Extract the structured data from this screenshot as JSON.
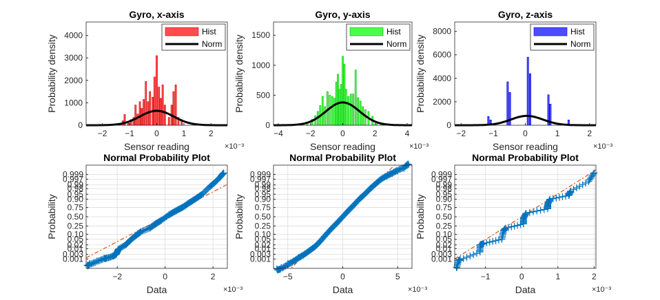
{
  "colors": {
    "red": "#ff4d4d",
    "redEdge": "#cc0000",
    "green": "#4dff4d",
    "greenEdge": "#00b300",
    "blue": "#4d4dff",
    "blueEdge": "#0000cc",
    "probe": "#0072bd",
    "fit": "#d95319"
  },
  "chart_data": [
    {
      "type": "histogram",
      "panel": "hx",
      "title": "Gyro, x-axis",
      "xlabel": "Sensor reading",
      "ylabel": "Probability density",
      "exponent": "×10⁻³",
      "xlim": [
        -2.6,
        2.6
      ],
      "ylim": [
        0,
        4600
      ],
      "xticks": [
        -2,
        -1,
        0,
        1,
        2
      ],
      "yticks": [
        0,
        1000,
        2000,
        3000,
        4000
      ],
      "legend": [
        "Hist",
        "Norm"
      ],
      "legend_position": "top-right",
      "color": "red",
      "normal": {
        "mean": 0.0,
        "sd": 0.62
      },
      "bars": [
        [
          -1.25,
          200
        ],
        [
          -1.18,
          480
        ],
        [
          -1.05,
          150
        ],
        [
          -0.95,
          250
        ],
        [
          -0.85,
          350
        ],
        [
          -0.78,
          900
        ],
        [
          -0.7,
          500
        ],
        [
          -0.62,
          1050
        ],
        [
          -0.55,
          750
        ],
        [
          -0.48,
          1150
        ],
        [
          -0.4,
          1950
        ],
        [
          -0.32,
          1050
        ],
        [
          -0.25,
          1500
        ],
        [
          -0.15,
          1250
        ],
        [
          -0.08,
          2150
        ],
        [
          0.0,
          3100
        ],
        [
          0.08,
          1700
        ],
        [
          0.15,
          1200
        ],
        [
          0.22,
          1800
        ],
        [
          0.3,
          900
        ],
        [
          0.45,
          350
        ],
        [
          0.55,
          900
        ],
        [
          0.62,
          1500
        ],
        [
          0.7,
          1800
        ],
        [
          0.8,
          350
        ],
        [
          0.92,
          200
        ]
      ]
    },
    {
      "type": "histogram",
      "panel": "hy",
      "title": "Gyro, y-axis",
      "xlabel": "Sensor reading",
      "ylabel": "Probability density",
      "exponent": "×10⁻³",
      "xlim": [
        -4.3,
        4.3
      ],
      "ylim": [
        0,
        1720
      ],
      "xticks": [
        -4,
        -2,
        0,
        2,
        4
      ],
      "yticks": [
        0,
        500,
        1000,
        1500
      ],
      "legend": [
        "Hist",
        "Norm"
      ],
      "legend_position": "top-right",
      "color": "green",
      "normal": {
        "mean": 0.0,
        "sd": 1.05
      },
      "bars": [
        [
          -2.6,
          25
        ],
        [
          -2.2,
          50
        ],
        [
          -1.9,
          100
        ],
        [
          -1.7,
          160
        ],
        [
          -1.55,
          230
        ],
        [
          -1.4,
          330
        ],
        [
          -1.25,
          480
        ],
        [
          -1.1,
          310
        ],
        [
          -0.95,
          560
        ],
        [
          -0.8,
          500
        ],
        [
          -0.65,
          480
        ],
        [
          -0.5,
          450
        ],
        [
          -0.4,
          720
        ],
        [
          -0.3,
          850
        ],
        [
          -0.2,
          600
        ],
        [
          -0.1,
          680
        ],
        [
          0.0,
          1150
        ],
        [
          0.1,
          1020
        ],
        [
          0.2,
          600
        ],
        [
          0.35,
          480
        ],
        [
          0.5,
          520
        ],
        [
          0.65,
          520
        ],
        [
          0.8,
          920
        ],
        [
          0.95,
          460
        ],
        [
          1.1,
          400
        ],
        [
          1.25,
          310
        ],
        [
          1.4,
          260
        ],
        [
          1.6,
          230
        ],
        [
          1.85,
          150
        ],
        [
          2.1,
          50
        ],
        [
          2.4,
          30
        ]
      ]
    },
    {
      "type": "histogram",
      "panel": "hz",
      "title": "Gyro, z-axis",
      "xlabel": "Sensor reading",
      "ylabel": "Probability density",
      "exponent": "×10⁻³",
      "xlim": [
        -2.2,
        2.2
      ],
      "ylim": [
        0,
        8800
      ],
      "xticks": [
        -2,
        -1,
        0,
        1,
        2
      ],
      "yticks": [
        0,
        2000,
        4000,
        6000,
        8000
      ],
      "legend": [
        "Hist",
        "Norm"
      ],
      "legend_position": "top-right",
      "color": "blue",
      "normal": {
        "mean": 0.05,
        "sd": 0.5
      },
      "bars": [
        [
          -1.15,
          750
        ],
        [
          -1.08,
          450
        ],
        [
          -0.55,
          3700
        ],
        [
          -0.48,
          2800
        ],
        [
          0.08,
          5800
        ],
        [
          0.15,
          4400
        ],
        [
          0.72,
          2600
        ],
        [
          0.78,
          1800
        ],
        [
          1.35,
          450
        ]
      ]
    },
    {
      "type": "probability_plot",
      "panel": "px",
      "title": "Normal Probability Plot",
      "xlabel": "Data",
      "ylabel": "Probability",
      "exponent": "×10⁻³",
      "xlim": [
        -3.3,
        2.6
      ],
      "xticks": [
        -2,
        0,
        2
      ],
      "ptick_labels": [
        "0.001",
        "0.003",
        "0.01",
        "0.02",
        "0.05",
        "0.10",
        "0.25",
        "0.50",
        "0.75",
        "0.90",
        "0.95",
        "0.98",
        "0.99",
        "0.997",
        "0.999"
      ],
      "pticks": [
        0.001,
        0.003,
        0.01,
        0.02,
        0.05,
        0.1,
        0.25,
        0.5,
        0.75,
        0.9,
        0.95,
        0.98,
        0.99,
        0.997,
        0.999
      ],
      "fit": {
        "mean": 0.0,
        "sd": 1.1
      },
      "points": [
        [
          -3.25,
          0.0002
        ],
        [
          -3.15,
          0.0003
        ],
        [
          -2.85,
          0.0006
        ],
        [
          -2.55,
          0.0012
        ],
        [
          -2.45,
          0.0013
        ],
        [
          -2.2,
          0.002
        ],
        [
          -2.05,
          0.003
        ],
        [
          -2.0,
          0.005
        ],
        [
          -1.95,
          0.009
        ],
        [
          -1.65,
          0.02
        ],
        [
          -1.55,
          0.03
        ],
        [
          -1.35,
          0.06
        ],
        [
          -1.15,
          0.1
        ],
        [
          -1.0,
          0.14
        ],
        [
          -0.65,
          0.2
        ],
        [
          -0.45,
          0.28
        ],
        [
          -0.35,
          0.32
        ],
        [
          -0.15,
          0.4
        ],
        [
          0.15,
          0.55
        ],
        [
          0.35,
          0.63
        ],
        [
          0.55,
          0.7
        ],
        [
          0.75,
          0.76
        ],
        [
          0.95,
          0.83
        ],
        [
          1.15,
          0.88
        ],
        [
          1.35,
          0.92
        ],
        [
          1.55,
          0.95
        ],
        [
          1.85,
          0.985
        ],
        [
          2.05,
          0.993
        ],
        [
          2.3,
          0.998
        ],
        [
          2.45,
          0.9993
        ]
      ]
    },
    {
      "type": "probability_plot",
      "panel": "py",
      "title": "Normal Probability Plot",
      "xlabel": "Data",
      "ylabel": "Probability",
      "exponent": "×10⁻³",
      "xlim": [
        -6.3,
        6.3
      ],
      "xticks": [
        -5,
        0,
        5
      ],
      "ptick_labels": [
        "0.001",
        "0.003",
        "0.01",
        "0.02",
        "0.05",
        "0.10",
        "0.25",
        "0.50",
        "0.75",
        "0.90",
        "0.95",
        "0.98",
        "0.99",
        "0.997",
        "0.999"
      ],
      "pticks": [
        0.001,
        0.003,
        0.01,
        0.02,
        0.05,
        0.1,
        0.25,
        0.5,
        0.75,
        0.9,
        0.95,
        0.98,
        0.99,
        0.997,
        0.999
      ],
      "fit": {
        "mean": 0.0,
        "sd": 1.25
      },
      "points": [
        [
          -6.0,
          7e-05
        ],
        [
          -5.6,
          0.0001
        ],
        [
          -5.0,
          0.0003
        ],
        [
          -4.5,
          0.0006
        ],
        [
          -4.0,
          0.0015
        ],
        [
          -3.5,
          0.003
        ],
        [
          -3.0,
          0.007
        ],
        [
          -2.5,
          0.015
        ],
        [
          -2.0,
          0.04
        ],
        [
          -1.5,
          0.1
        ],
        [
          -1.0,
          0.2
        ],
        [
          -0.5,
          0.33
        ],
        [
          0.0,
          0.5
        ],
        [
          0.5,
          0.67
        ],
        [
          1.0,
          0.8
        ],
        [
          1.5,
          0.9
        ],
        [
          2.0,
          0.95
        ],
        [
          2.5,
          0.98
        ],
        [
          3.0,
          0.992
        ],
        [
          3.5,
          0.997
        ],
        [
          4.0,
          0.9985
        ],
        [
          4.5,
          0.9992
        ],
        [
          5.0,
          0.9996
        ],
        [
          5.6,
          0.9998
        ],
        [
          6.0,
          0.99993
        ]
      ]
    },
    {
      "type": "probability_plot",
      "panel": "pz",
      "title": "Normal Probability Plot",
      "xlabel": "Data",
      "ylabel": "Probability",
      "exponent": "×10⁻³",
      "xlim": [
        -1.85,
        2.05
      ],
      "xticks": [
        -1,
        0,
        1,
        2
      ],
      "ptick_labels": [
        "0.001",
        "0.003",
        "0.01",
        "0.02",
        "0.05",
        "0.10",
        "0.25",
        "0.50",
        "0.75",
        "0.90",
        "0.95",
        "0.98",
        "0.99",
        "0.997",
        "0.999"
      ],
      "pticks": [
        0.001,
        0.003,
        0.01,
        0.02,
        0.05,
        0.1,
        0.25,
        0.5,
        0.75,
        0.9,
        0.95,
        0.98,
        0.99,
        0.997,
        0.999
      ],
      "fit": {
        "mean": 0.0,
        "sd": 0.6
      },
      "points": [
        [
          -1.8,
          0.0001
        ],
        [
          -1.75,
          0.0007
        ],
        [
          -1.7,
          0.0009
        ],
        [
          -1.15,
          0.005
        ],
        [
          -1.15,
          0.02
        ],
        [
          -1.05,
          0.025
        ],
        [
          -0.55,
          0.05
        ],
        [
          -0.5,
          0.15
        ],
        [
          -0.45,
          0.2
        ],
        [
          0.05,
          0.3
        ],
        [
          0.05,
          0.45
        ],
        [
          0.12,
          0.6
        ],
        [
          0.72,
          0.72
        ],
        [
          0.72,
          0.82
        ],
        [
          0.78,
          0.9
        ],
        [
          1.3,
          0.94
        ],
        [
          1.35,
          0.97
        ],
        [
          1.85,
          0.995
        ],
        [
          2.0,
          0.9993
        ]
      ]
    }
  ]
}
